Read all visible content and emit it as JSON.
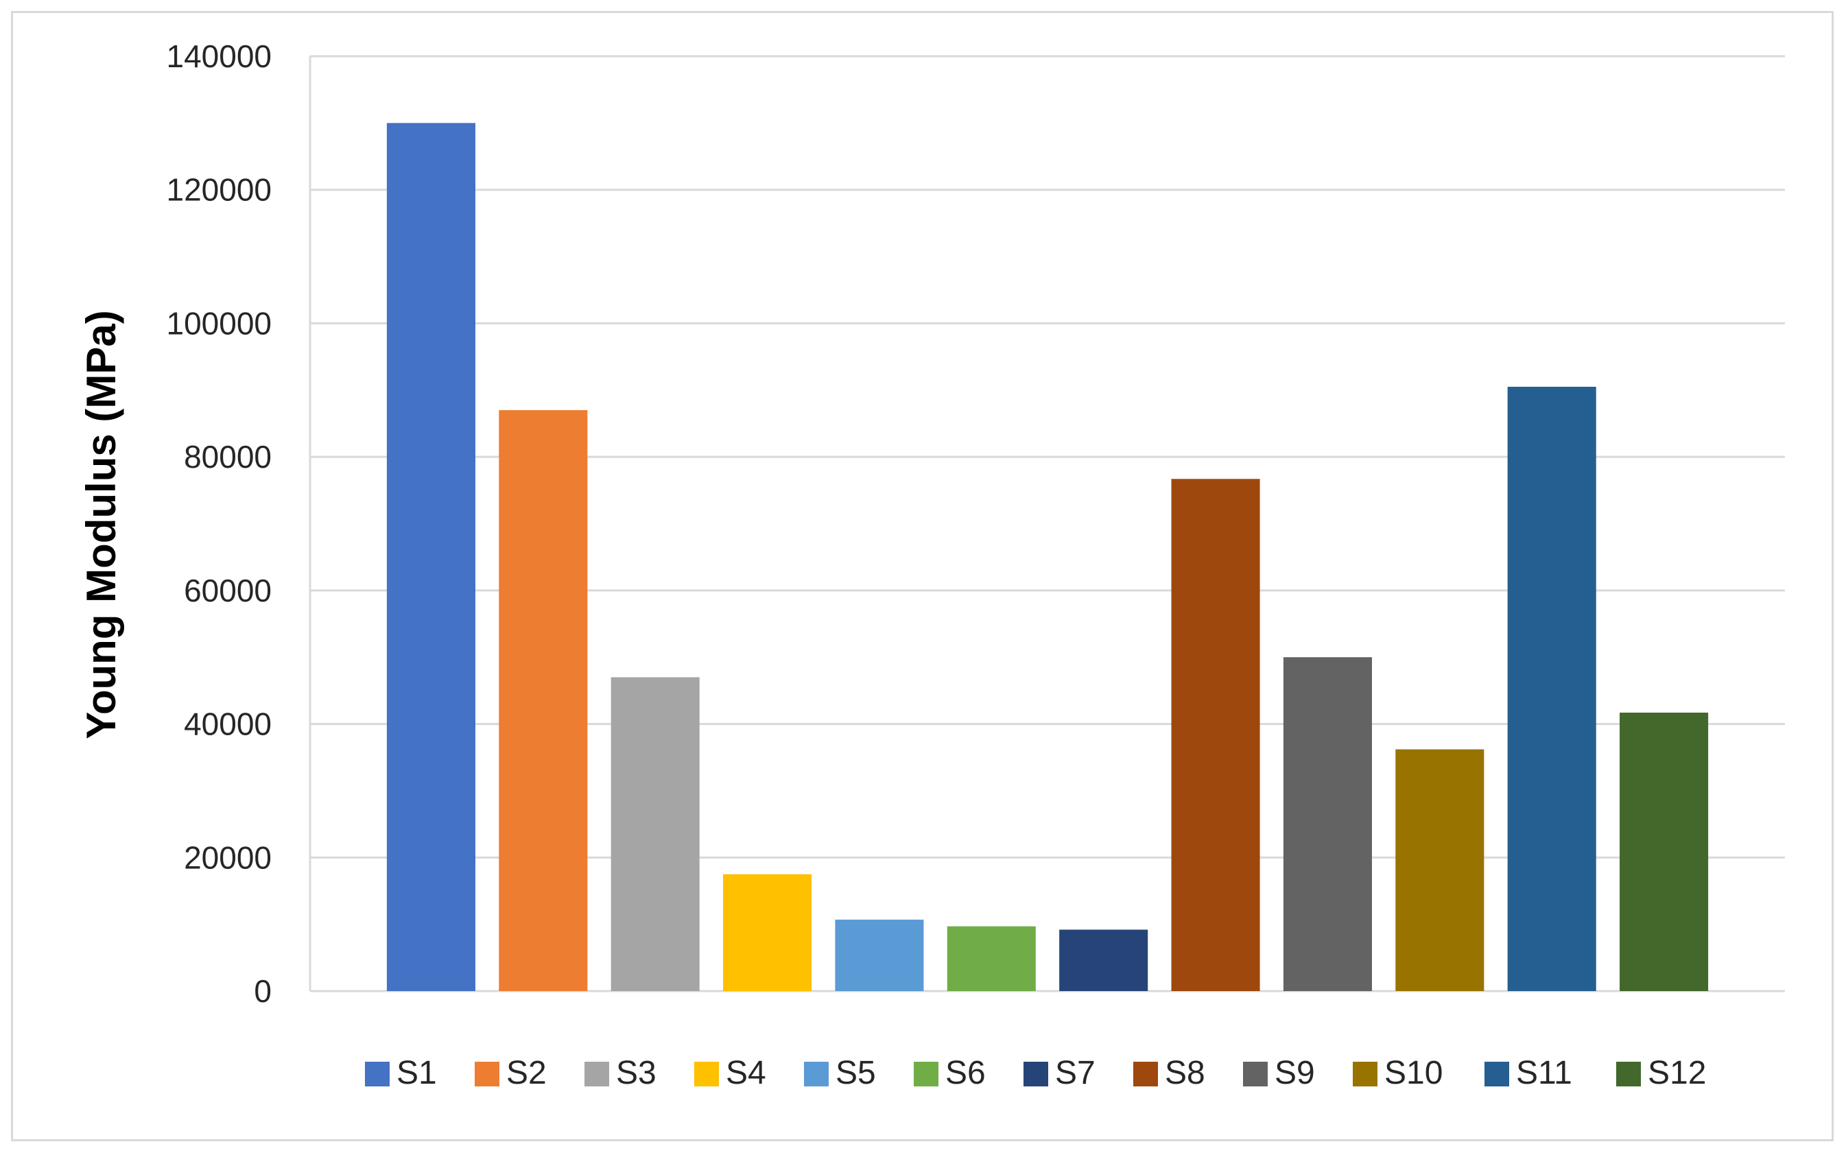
{
  "chart_data": {
    "type": "bar",
    "title": "",
    "xlabel": "",
    "ylabel": "Young Modulus (MPa)",
    "ylim": [
      0,
      140000
    ],
    "yticks": [
      0,
      20000,
      40000,
      60000,
      80000,
      100000,
      120000,
      140000
    ],
    "grid": true,
    "legend_position": "bottom",
    "categories": [
      "S1",
      "S2",
      "S3",
      "S4",
      "S5",
      "S6",
      "S7",
      "S8",
      "S9",
      "S10",
      "S11",
      "S12"
    ],
    "values": [
      130000,
      87000,
      47000,
      17500,
      10700,
      9700,
      9200,
      76700,
      50000,
      36200,
      90500,
      41700
    ],
    "colors": [
      "#4472c4",
      "#ed7d31",
      "#a5a5a5",
      "#ffc000",
      "#5b9bd5",
      "#70ad47",
      "#264478",
      "#9e480e",
      "#636363",
      "#997300",
      "#255e91",
      "#43682b"
    ]
  }
}
